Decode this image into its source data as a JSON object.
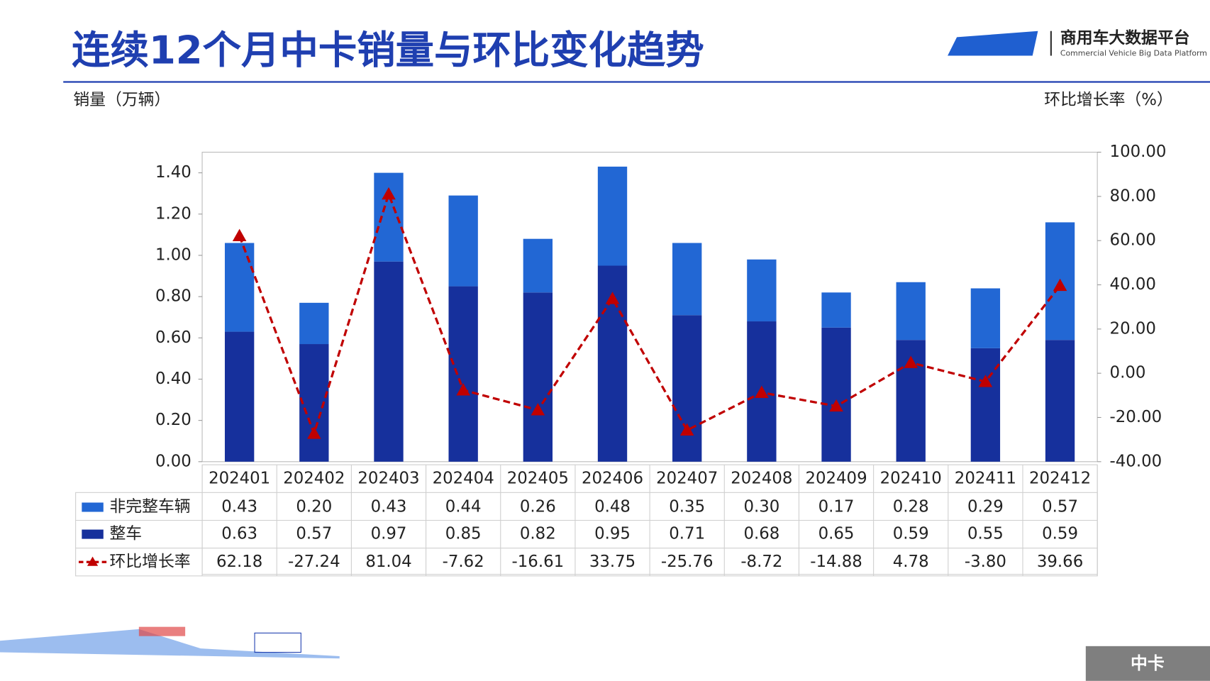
{
  "header": {
    "title": "连续12个月中卡销量与环比变化趋势",
    "logo_name": "商用车大数据平台",
    "logo_subtitle": "Commercial Vehicle Big Data Platform",
    "tag": "中卡"
  },
  "chart_data": {
    "type": "bar",
    "y_label": "销量（万辆）",
    "y2_label": "环比增长率（%）",
    "categories": [
      "202401",
      "202402",
      "202403",
      "202404",
      "202405",
      "202406",
      "202407",
      "202408",
      "202409",
      "202410",
      "202411",
      "202412"
    ],
    "series": [
      {
        "name": "非完整车辆",
        "type": "bar",
        "color": "#2267d4",
        "values": [
          0.43,
          0.2,
          0.43,
          0.44,
          0.26,
          0.48,
          0.35,
          0.3,
          0.17,
          0.28,
          0.29,
          0.57
        ],
        "value_labels": [
          "0.43",
          "0.20",
          "0.43",
          "0.44",
          "0.26",
          "0.48",
          "0.35",
          "0.30",
          "0.17",
          "0.28",
          "0.29",
          "0.57"
        ]
      },
      {
        "name": "整车",
        "type": "bar",
        "color": "#16309c",
        "values": [
          0.63,
          0.57,
          0.97,
          0.85,
          0.82,
          0.95,
          0.71,
          0.68,
          0.65,
          0.59,
          0.55,
          0.59
        ],
        "value_labels": [
          "0.63",
          "0.57",
          "0.97",
          "0.85",
          "0.82",
          "0.95",
          "0.71",
          "0.68",
          "0.65",
          "0.59",
          "0.55",
          "0.59"
        ]
      },
      {
        "name": "环比增长率",
        "type": "line",
        "axis": "y2",
        "color": "#c00000",
        "values": [
          62.18,
          -27.24,
          81.04,
          -7.62,
          -16.61,
          33.75,
          -25.76,
          -8.72,
          -14.88,
          4.78,
          -3.8,
          39.66
        ],
        "value_labels": [
          "62.18",
          "-27.24",
          "81.04",
          "-7.62",
          "-16.61",
          "33.75",
          "-25.76",
          "-8.72",
          "-14.88",
          "4.78",
          "-3.80",
          "39.66"
        ]
      }
    ],
    "ylim": [
      0,
      1.5
    ],
    "yticks": [
      {
        "value": 0,
        "label": "0.00"
      },
      {
        "value": 0.2,
        "label": "0.20"
      },
      {
        "value": 0.4,
        "label": "0.40"
      },
      {
        "value": 0.6,
        "label": "0.60"
      },
      {
        "value": 0.8,
        "label": "0.80"
      },
      {
        "value": 1,
        "label": "1.00"
      },
      {
        "value": 1.2,
        "label": "1.20"
      },
      {
        "value": 1.4,
        "label": "1.40"
      }
    ],
    "y2lim": [
      -40,
      100
    ],
    "y2ticks": [
      {
        "value": -40,
        "label": "-40.00"
      },
      {
        "value": -20,
        "label": "-20.00"
      },
      {
        "value": 0,
        "label": "0.00"
      },
      {
        "value": 20,
        "label": "20.00"
      },
      {
        "value": 40,
        "label": "40.00"
      },
      {
        "value": 60,
        "label": "60.00"
      },
      {
        "value": 80,
        "label": "80.00"
      },
      {
        "value": 100,
        "label": "100.00"
      }
    ]
  }
}
